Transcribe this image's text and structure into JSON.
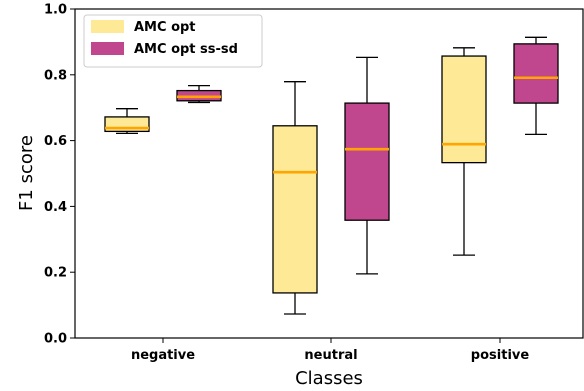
{
  "chart_data": {
    "type": "box",
    "xlabel": "Classes",
    "ylabel": "F1 score",
    "ylim": [
      0.0,
      1.0
    ],
    "yticks": [
      "0.0",
      "0.2",
      "0.4",
      "0.6",
      "0.8",
      "1.0"
    ],
    "categories": [
      "negative",
      "neutral",
      "positive"
    ],
    "legend_position": "top-left",
    "grid": false,
    "median_color": "#ffa500",
    "series": [
      {
        "name": "AMC opt",
        "color": "#fde996",
        "boxes": [
          {
            "min": 0.622,
            "q1": 0.628,
            "median": 0.638,
            "q3": 0.672,
            "max": 0.697
          },
          {
            "min": 0.073,
            "q1": 0.137,
            "median": 0.504,
            "q3": 0.645,
            "max": 0.779
          },
          {
            "min": 0.252,
            "q1": 0.533,
            "median": 0.589,
            "q3": 0.857,
            "max": 0.882
          }
        ]
      },
      {
        "name": "AMC opt ss-sd",
        "color": "#c0478d",
        "boxes": [
          {
            "min": 0.716,
            "q1": 0.721,
            "median": 0.733,
            "q3": 0.752,
            "max": 0.767
          },
          {
            "min": 0.195,
            "q1": 0.358,
            "median": 0.574,
            "q3": 0.714,
            "max": 0.853
          },
          {
            "min": 0.619,
            "q1": 0.714,
            "median": 0.791,
            "q3": 0.894,
            "max": 0.914
          }
        ]
      }
    ]
  }
}
